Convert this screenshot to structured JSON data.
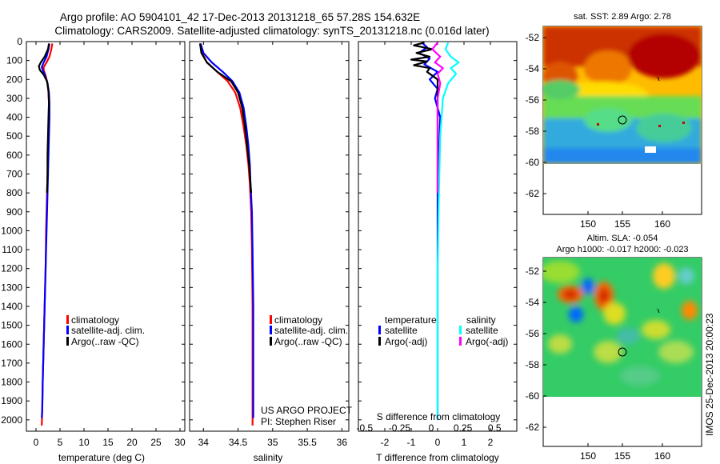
{
  "header": {
    "title_line1": "Argo profile: AO 5904101_42 17-Dec-2013 20131218_65 57.28S 154.632E",
    "title_line2": "Climatology: CARS2009. Satellite-adjusted climatology: synTS_20131218.nc (0.016d later)"
  },
  "colors": {
    "climatology": "#ff0000",
    "satellite": "#0000ff",
    "argo": "#000000",
    "sal_satellite": "#00ffff",
    "sal_argo": "#ff00ff"
  },
  "chart_data": [
    {
      "id": "temperature",
      "type": "line",
      "xlabel": "temperature (deg C)",
      "ylabel": "",
      "xlim": [
        -2,
        31
      ],
      "ylim": [
        2060,
        0
      ],
      "xticks": [
        0,
        5,
        10,
        15,
        20,
        25,
        30
      ],
      "yticks": [
        0,
        100,
        200,
        300,
        400,
        500,
        600,
        700,
        800,
        900,
        1000,
        1100,
        1200,
        1300,
        1400,
        1500,
        1600,
        1700,
        1800,
        1900,
        2000
      ],
      "legend": [
        {
          "label": "climatology",
          "color": "#ff0000"
        },
        {
          "label": "satellite-adj. clim.",
          "color": "#0000ff"
        },
        {
          "label": "Argo(..raw -QC)",
          "color": "#000000"
        }
      ],
      "series": [
        {
          "name": "climatology",
          "color": "#ff0000",
          "points": [
            [
              3.4,
              10
            ],
            [
              3.2,
              40
            ],
            [
              2.8,
              80
            ],
            [
              2.2,
              110
            ],
            [
              1.6,
              135
            ],
            [
              1.6,
              150
            ],
            [
              2.0,
              180
            ],
            [
              2.4,
              220
            ],
            [
              2.6,
              270
            ],
            [
              2.7,
              330
            ],
            [
              2.7,
              400
            ],
            [
              2.6,
              500
            ],
            [
              2.5,
              600
            ],
            [
              2.4,
              700
            ],
            [
              2.3,
              800
            ],
            [
              2.2,
              900
            ],
            [
              2.1,
              1000
            ],
            [
              2.0,
              1200
            ],
            [
              1.8,
              1400
            ],
            [
              1.6,
              1600
            ],
            [
              1.4,
              1800
            ],
            [
              1.3,
              1950
            ],
            [
              1.2,
              2030
            ]
          ]
        },
        {
          "name": "satellite-adj. clim.",
          "color": "#0000ff",
          "points": [
            [
              2.8,
              10
            ],
            [
              2.6,
              40
            ],
            [
              2.2,
              80
            ],
            [
              1.6,
              110
            ],
            [
              1.2,
              135
            ],
            [
              1.4,
              150
            ],
            [
              1.9,
              180
            ],
            [
              2.4,
              220
            ],
            [
              2.7,
              270
            ],
            [
              2.8,
              330
            ],
            [
              2.8,
              400
            ],
            [
              2.7,
              500
            ],
            [
              2.6,
              600
            ],
            [
              2.5,
              700
            ],
            [
              2.4,
              800
            ],
            [
              2.3,
              900
            ],
            [
              2.2,
              1000
            ],
            [
              2.0,
              1200
            ],
            [
              1.8,
              1400
            ],
            [
              1.6,
              1600
            ],
            [
              1.4,
              1800
            ],
            [
              1.3,
              1950
            ],
            [
              1.2,
              1990
            ]
          ]
        },
        {
          "name": "Argo(..raw -QC)",
          "color": "#000000",
          "points": [
            [
              2.7,
              10
            ],
            [
              2.5,
              40
            ],
            [
              1.8,
              80
            ],
            [
              1.0,
              110
            ],
            [
              0.6,
              130
            ],
            [
              0.8,
              150
            ],
            [
              1.6,
              175
            ],
            [
              2.3,
              210
            ],
            [
              2.6,
              260
            ],
            [
              2.7,
              320
            ],
            [
              2.6,
              400
            ],
            [
              2.5,
              500
            ],
            [
              2.4,
              600
            ],
            [
              2.4,
              700
            ],
            [
              2.3,
              800
            ]
          ]
        }
      ]
    },
    {
      "id": "salinity",
      "type": "line",
      "xlabel": "salinity",
      "ylabel": "",
      "xlim": [
        33.8,
        36.1
      ],
      "ylim": [
        2060,
        0
      ],
      "xticks": [
        34,
        34.5,
        35,
        35.5,
        36
      ],
      "legend": [
        {
          "label": "climatology",
          "color": "#ff0000"
        },
        {
          "label": "satellite-adj. clim.",
          "color": "#0000ff"
        },
        {
          "label": "Argo(..raw -QC)",
          "color": "#000000"
        }
      ],
      "annotation": [
        "US ARGO PROJECT",
        "PI: Stephen Riser"
      ],
      "series": [
        {
          "name": "climatology",
          "color": "#ff0000",
          "points": [
            [
              33.95,
              10
            ],
            [
              33.98,
              60
            ],
            [
              34.05,
              110
            ],
            [
              34.2,
              160
            ],
            [
              34.35,
              210
            ],
            [
              34.46,
              270
            ],
            [
              34.53,
              350
            ],
            [
              34.58,
              450
            ],
            [
              34.62,
              550
            ],
            [
              34.65,
              650
            ],
            [
              34.67,
              750
            ],
            [
              34.69,
              900
            ],
            [
              34.7,
              1100
            ],
            [
              34.71,
              1400
            ],
            [
              34.71,
              1700
            ],
            [
              34.71,
              2030
            ]
          ]
        },
        {
          "name": "satellite-adj. clim.",
          "color": "#0000ff",
          "points": [
            [
              33.96,
              10
            ],
            [
              34.0,
              60
            ],
            [
              34.12,
              110
            ],
            [
              34.28,
              160
            ],
            [
              34.42,
              210
            ],
            [
              34.52,
              270
            ],
            [
              34.58,
              350
            ],
            [
              34.62,
              450
            ],
            [
              34.65,
              550
            ],
            [
              34.67,
              650
            ],
            [
              34.68,
              750
            ],
            [
              34.7,
              900
            ],
            [
              34.71,
              1100
            ],
            [
              34.72,
              1400
            ],
            [
              34.72,
              1700
            ],
            [
              34.72,
              1990
            ]
          ]
        },
        {
          "name": "Argo(..raw -QC)",
          "color": "#000000",
          "points": [
            [
              33.95,
              10
            ],
            [
              33.97,
              60
            ],
            [
              34.05,
              110
            ],
            [
              34.2,
              160
            ],
            [
              34.4,
              210
            ],
            [
              34.5,
              270
            ],
            [
              34.56,
              350
            ],
            [
              34.6,
              450
            ],
            [
              34.63,
              550
            ],
            [
              34.66,
              650
            ],
            [
              34.68,
              750
            ],
            [
              34.69,
              800
            ]
          ]
        }
      ]
    },
    {
      "id": "difference",
      "type": "line",
      "xlabel": "T difference from climatology",
      "secondary_label": "S difference from climatology",
      "xlim": [
        -3,
        3
      ],
      "ylim": [
        2060,
        0
      ],
      "xticks": [
        -2,
        -1,
        0,
        1,
        2
      ],
      "top_ticks": [
        "-0.5",
        "-0.25",
        "0",
        "0.25",
        "0.5"
      ],
      "legend_temperature": {
        "title": "temperature",
        "entries": [
          {
            "label": "satellite",
            "color": "#0000ff"
          },
          {
            "label": "Argo(-adj)",
            "color": "#000000"
          }
        ]
      },
      "legend_salinity": {
        "title": "salinity",
        "entries": [
          {
            "label": "satellite",
            "color": "#00ffff"
          },
          {
            "label": "Argo(-adj)",
            "color": "#ff00ff"
          }
        ]
      },
      "series": [
        {
          "name": "T satellite",
          "color": "#0000ff",
          "points": [
            [
              -0.6,
              5
            ],
            [
              -0.4,
              30
            ],
            [
              -0.7,
              60
            ],
            [
              -0.3,
              90
            ],
            [
              -0.5,
              120
            ],
            [
              0.0,
              160
            ],
            [
              -0.3,
              200
            ],
            [
              0.0,
              250
            ],
            [
              -0.1,
              300
            ],
            [
              0.1,
              400
            ],
            [
              0.05,
              600
            ],
            [
              0.0,
              800
            ],
            [
              0.0,
              1200
            ],
            [
              0.0,
              1600
            ],
            [
              0.0,
              2000
            ]
          ]
        },
        {
          "name": "T Argo(-adj)",
          "color": "#000000",
          "points": [
            [
              -0.5,
              5
            ],
            [
              -0.9,
              20
            ],
            [
              -0.2,
              40
            ],
            [
              -0.8,
              60
            ],
            [
              -0.3,
              80
            ],
            [
              -1.0,
              95
            ],
            [
              -0.4,
              105
            ],
            [
              -0.9,
              125
            ],
            [
              -0.3,
              140
            ],
            [
              -0.4,
              160
            ],
            [
              0.0,
              200
            ],
            [
              0.0,
              400
            ],
            [
              0.0,
              800
            ]
          ]
        },
        {
          "name": "S satellite",
          "color": "#00ffff",
          "points": [
            [
              0.4,
              5
            ],
            [
              0.3,
              40
            ],
            [
              0.5,
              80
            ],
            [
              0.8,
              110
            ],
            [
              0.5,
              140
            ],
            [
              0.7,
              170
            ],
            [
              0.4,
              220
            ],
            [
              0.2,
              300
            ],
            [
              0.1,
              500
            ],
            [
              0.05,
              800
            ],
            [
              0.0,
              1200
            ],
            [
              0.0,
              1600
            ],
            [
              0.0,
              2000
            ]
          ]
        },
        {
          "name": "S Argo(-adj)",
          "color": "#ff00ff",
          "points": [
            [
              0.0,
              5
            ],
            [
              -0.2,
              40
            ],
            [
              0.1,
              80
            ],
            [
              -0.1,
              110
            ],
            [
              0.2,
              140
            ],
            [
              0.0,
              170
            ],
            [
              0.1,
              220
            ],
            [
              0.0,
              300
            ],
            [
              0.0,
              500
            ],
            [
              0.0,
              800
            ]
          ]
        }
      ]
    }
  ],
  "maps": [
    {
      "id": "sst",
      "title": "sat. SST: 2.89 Argo: 2.78",
      "xticks": [
        "150",
        "155",
        "160"
      ],
      "yticks": [
        "-52",
        "-54",
        "-56",
        "-58",
        "-60",
        "-62"
      ],
      "float_marker": "circle"
    },
    {
      "id": "sla",
      "title_line1": "Altim. SLA: -0.054",
      "title_line2": "Argo h1000: -0.017 h2000: -0.023",
      "xticks": [
        "150",
        "155",
        "160"
      ],
      "yticks": [
        "-52",
        "-54",
        "-56",
        "-58",
        "-60",
        "-62"
      ],
      "float_marker": "circle"
    }
  ],
  "footer_vertical": "IMOS 25-Dec-2013 20:00:23"
}
